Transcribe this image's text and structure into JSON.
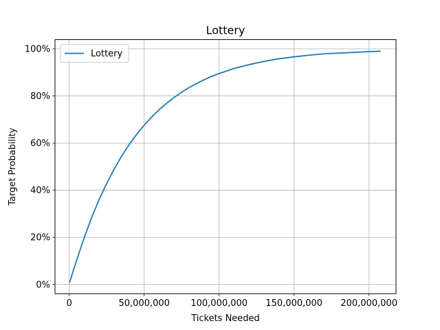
{
  "chart_data": {
    "type": "line",
    "title": "Lottery",
    "xlabel": "Tickets Needed",
    "ylabel": "Target Probability",
    "xlim": [
      -9500000,
      218000000
    ],
    "ylim": [
      -0.0392,
      1.0392
    ],
    "grid": true,
    "legend": {
      "position": "top-left",
      "entries": [
        "Lottery"
      ]
    },
    "x_ticks": [
      {
        "value": 0,
        "label": "0"
      },
      {
        "value": 50000000,
        "label": "50,000,000"
      },
      {
        "value": 100000000,
        "label": "100,000,000"
      },
      {
        "value": 150000000,
        "label": "150,000,000"
      },
      {
        "value": 200000000,
        "label": "200,000,000"
      }
    ],
    "y_ticks": [
      {
        "value": 0,
        "label": "0%"
      },
      {
        "value": 0.2,
        "label": "20%"
      },
      {
        "value": 0.4,
        "label": "40%"
      },
      {
        "value": 0.6,
        "label": "60%"
      },
      {
        "value": 0.8,
        "label": "80%"
      },
      {
        "value": 1.0,
        "label": "100%"
      }
    ],
    "series": [
      {
        "name": "Lottery",
        "color": "#1f77b4",
        "x": [
          300000,
          5000000,
          10000000,
          15000000,
          20000000,
          25000000,
          30000000,
          35000000,
          40000000,
          45000000,
          50000000,
          55000000,
          60000000,
          65000000,
          70000000,
          75000000,
          80000000,
          85000000,
          90000000,
          95000000,
          100000000,
          110000000,
          120000000,
          130000000,
          140000000,
          150000000,
          160000000,
          170000000,
          180000000,
          190000000,
          200000000,
          207500000
        ],
        "y": [
          0.01,
          0.104,
          0.199,
          0.285,
          0.361,
          0.429,
          0.49,
          0.545,
          0.594,
          0.637,
          0.676,
          0.711,
          0.742,
          0.769,
          0.794,
          0.816,
          0.836,
          0.853,
          0.869,
          0.883,
          0.895,
          0.917,
          0.933,
          0.947,
          0.958,
          0.966,
          0.973,
          0.979,
          0.982,
          0.985,
          0.988,
          0.99
        ]
      }
    ]
  }
}
